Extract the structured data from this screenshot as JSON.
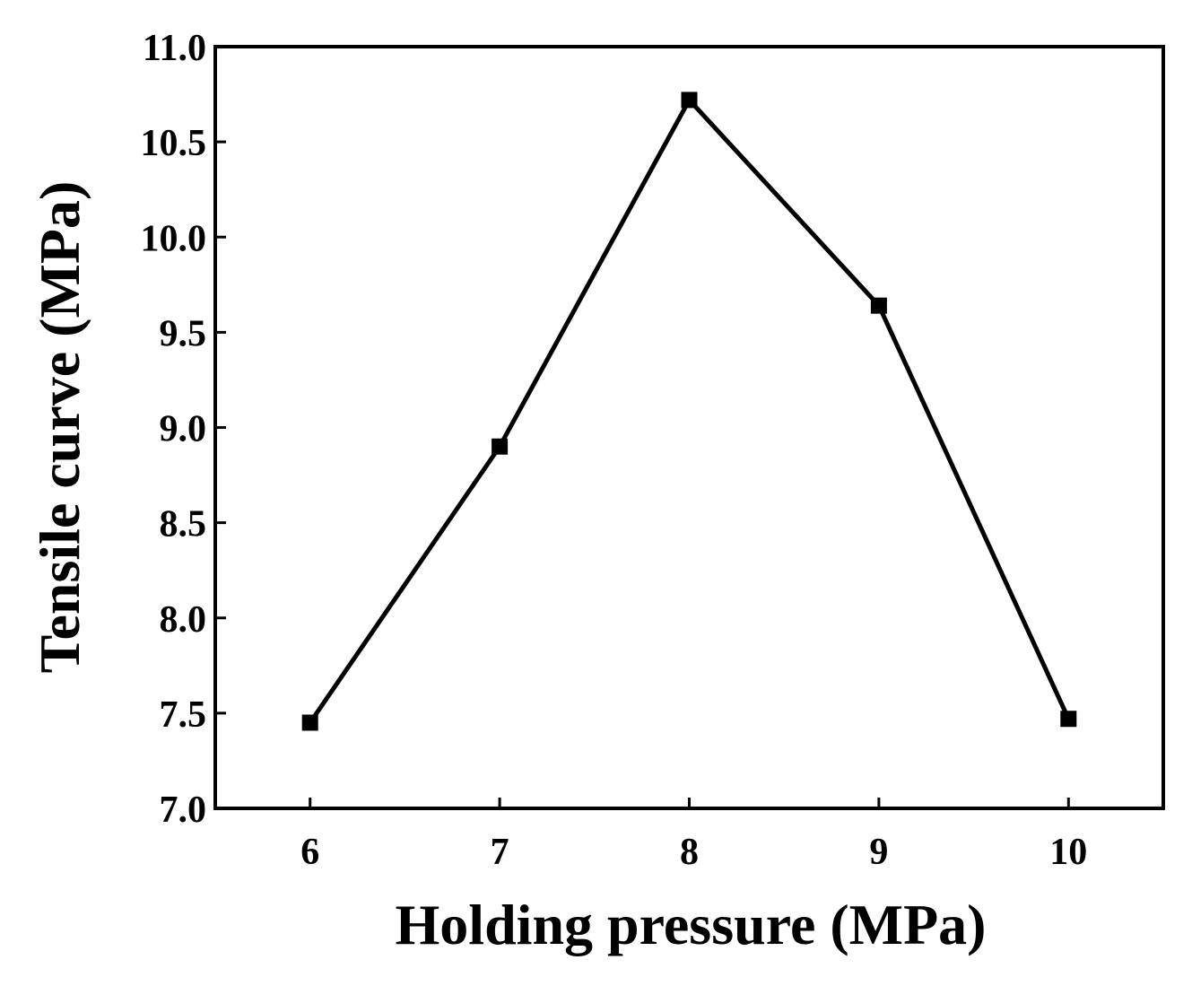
{
  "chart_data": {
    "type": "line",
    "title": "",
    "xlabel": "Holding pressure (MPa)",
    "ylabel": "Tensile curve (MPa)",
    "x": [
      6,
      7,
      8,
      9,
      10
    ],
    "x_tick_labels": [
      "6",
      "7",
      "8",
      "9",
      "10"
    ],
    "xlim": [
      5.5,
      10.5
    ],
    "ylim": [
      7.0,
      11.0
    ],
    "y_tick_labels": [
      "7.0",
      "7.5",
      "8.0",
      "8.5",
      "9.0",
      "9.5",
      "10.0",
      "10.5",
      "11.0"
    ],
    "series": [
      {
        "values": [
          7.45,
          8.9,
          10.72,
          9.64,
          7.47
        ],
        "marker": "square",
        "color": "#000000"
      }
    ],
    "grid": false,
    "legend": false
  }
}
